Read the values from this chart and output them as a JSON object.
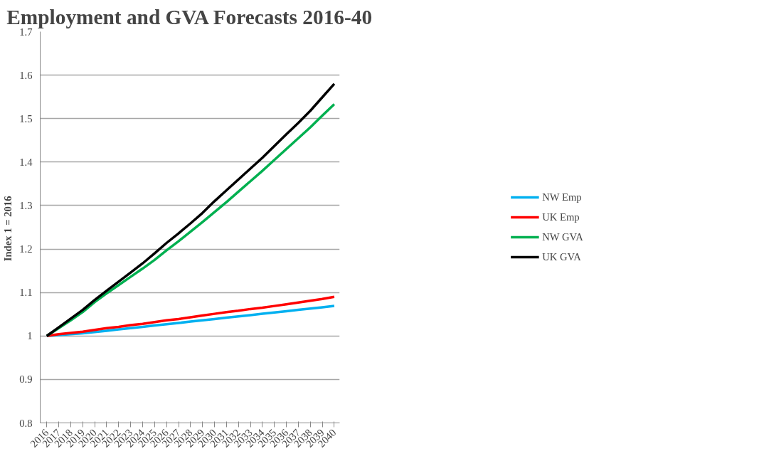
{
  "chart_data": {
    "type": "line",
    "title": "Employment and GVA Forecasts 2016-40",
    "ylabel": "Index 1 =  2016",
    "categories": [
      "2016",
      "2017",
      "2018",
      "2019",
      "2020",
      "2021",
      "2022",
      "2023",
      "2024",
      "2025",
      "2026",
      "2027",
      "2028",
      "2029",
      "2030",
      "2031",
      "2032",
      "2033",
      "2034",
      "2035",
      "2036",
      "2037",
      "2038",
      "2039",
      "2040"
    ],
    "series": [
      {
        "name": "NW Emp",
        "color": "#00b0f0",
        "values": [
          1.0,
          1.002,
          1.004,
          1.006,
          1.009,
          1.012,
          1.015,
          1.018,
          1.021,
          1.024,
          1.027,
          1.03,
          1.033,
          1.036,
          1.039,
          1.042,
          1.045,
          1.048,
          1.051,
          1.054,
          1.057,
          1.06,
          1.063,
          1.066,
          1.069
        ]
      },
      {
        "name": "UK Emp",
        "color": "#ff0000",
        "values": [
          1.0,
          1.004,
          1.007,
          1.01,
          1.014,
          1.018,
          1.021,
          1.025,
          1.028,
          1.032,
          1.036,
          1.039,
          1.043,
          1.047,
          1.051,
          1.055,
          1.058,
          1.062,
          1.065,
          1.069,
          1.073,
          1.077,
          1.081,
          1.085,
          1.09
        ]
      },
      {
        "name": "NW GVA",
        "color": "#00b050",
        "values": [
          1.0,
          1.018,
          1.036,
          1.055,
          1.078,
          1.098,
          1.117,
          1.136,
          1.155,
          1.175,
          1.197,
          1.218,
          1.24,
          1.262,
          1.285,
          1.308,
          1.332,
          1.356,
          1.38,
          1.405,
          1.43,
          1.455,
          1.48,
          1.507,
          1.533
        ]
      },
      {
        "name": "UK GVA",
        "color": "#000000",
        "values": [
          1.0,
          1.02,
          1.04,
          1.06,
          1.083,
          1.104,
          1.125,
          1.146,
          1.167,
          1.19,
          1.214,
          1.236,
          1.259,
          1.283,
          1.31,
          1.335,
          1.36,
          1.385,
          1.41,
          1.437,
          1.464,
          1.49,
          1.518,
          1.549,
          1.58
        ]
      }
    ],
    "ylim": [
      0.8,
      1.7
    ],
    "yticks": [
      0.8,
      0.9,
      1,
      1.1,
      1.2,
      1.3,
      1.4,
      1.5,
      1.6,
      1.7
    ],
    "grid": "y",
    "legend": "right",
    "marker": "none",
    "line_style": "solid"
  }
}
